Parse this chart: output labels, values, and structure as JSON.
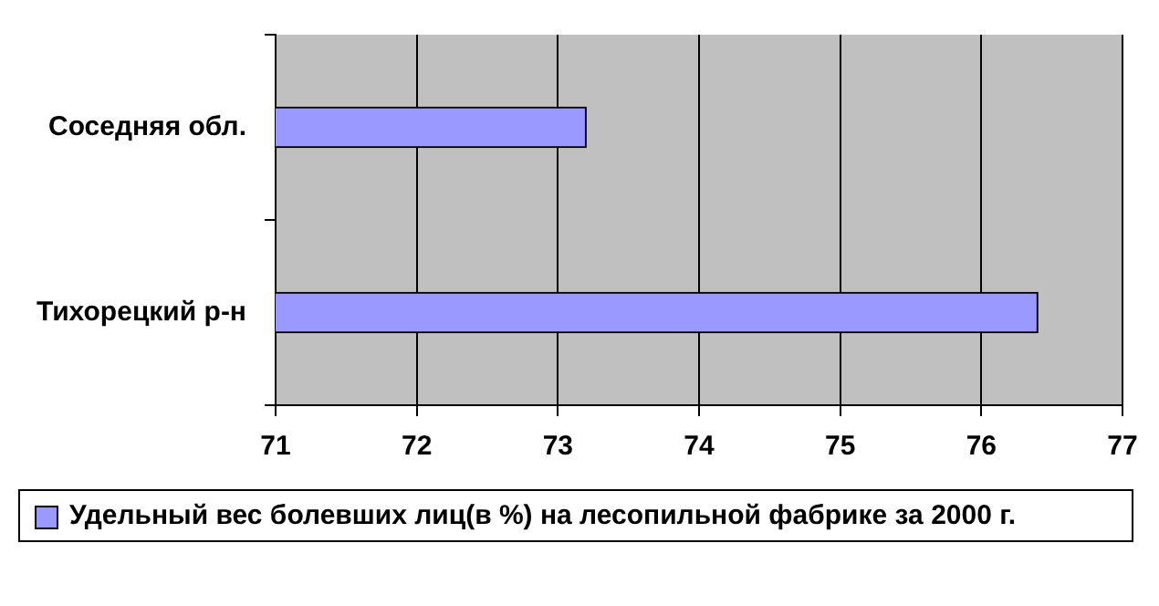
{
  "chart_data": {
    "type": "bar",
    "orientation": "horizontal",
    "categories": [
      "Соседняя обл.",
      "Тихорецкий р-н"
    ],
    "series": [
      {
        "name": "Удельный вес болевших лиц(в %) на лесопильной фабрике за 2000 г.",
        "color": "#9999ff",
        "values": [
          73.2,
          76.4
        ]
      }
    ],
    "xlim": [
      71,
      77
    ],
    "xticks": [
      71,
      72,
      73,
      74,
      75,
      76,
      77
    ],
    "grid": "x",
    "legend": "bottom"
  }
}
